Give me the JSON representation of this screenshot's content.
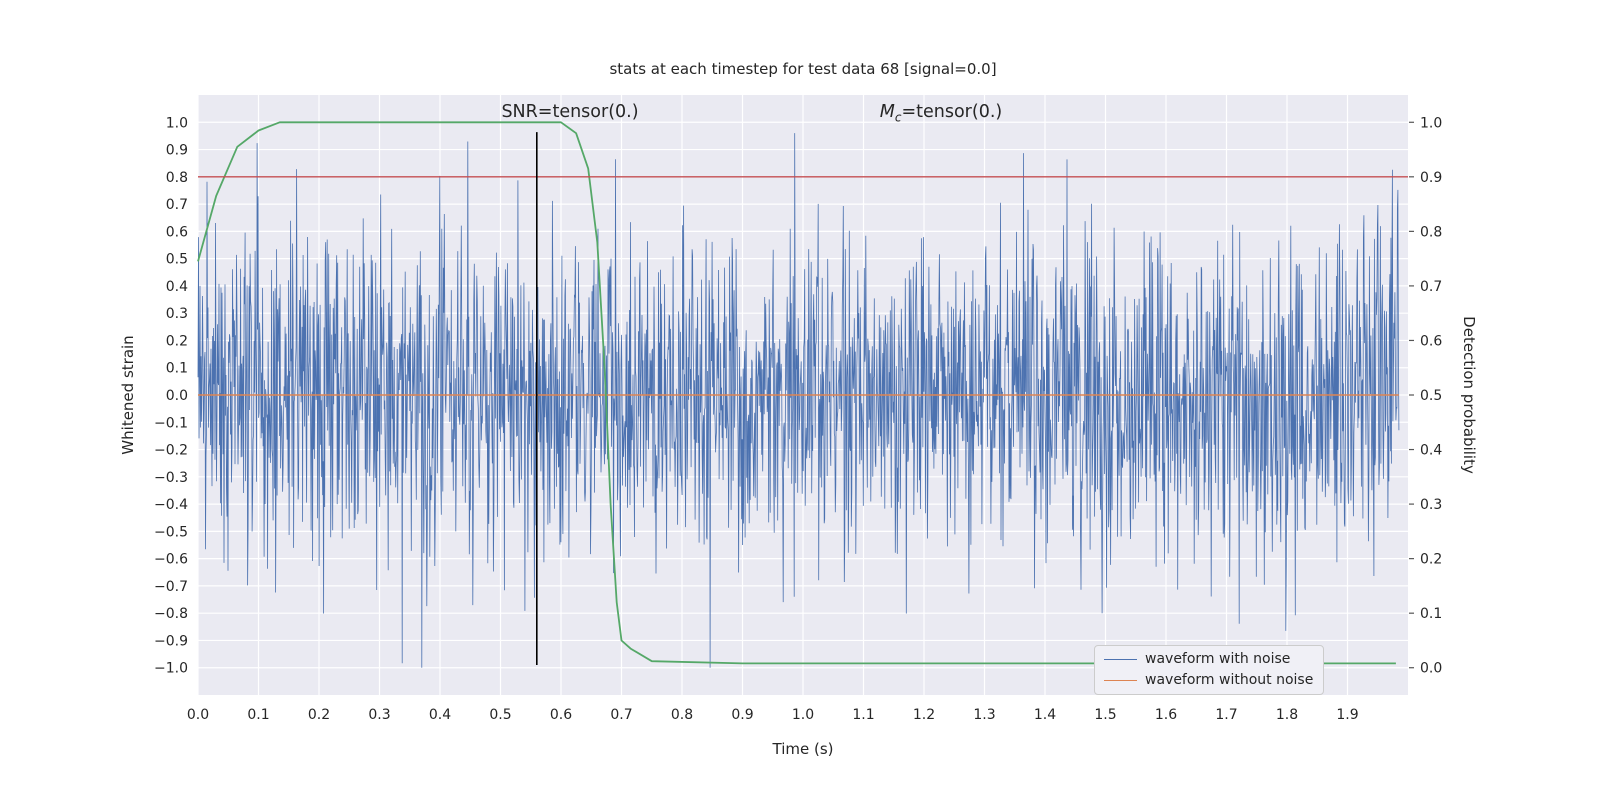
{
  "figure": {
    "annotations": {
      "snr": "SNR=tensor(0.)",
      "mc_prefix": "M",
      "mc_sub": "c",
      "mc_suffix": "=tensor(0.)"
    }
  },
  "chart_data": {
    "type": "line",
    "title": "stats at each timestep for test data 68 [signal=0.0]",
    "xlabel": "Time (s)",
    "ylabel_left": "Whitened strain",
    "ylabel_right": "Detection probability",
    "xlim": [
      0.0,
      2.0
    ],
    "ylim_left": [
      -1.1,
      1.1
    ],
    "ylim_right": [
      -0.05,
      1.05
    ],
    "x_ticks": [
      0.0,
      0.1,
      0.2,
      0.3,
      0.4,
      0.5,
      0.6,
      0.7,
      0.8,
      0.9,
      1.0,
      1.1,
      1.2,
      1.3,
      1.4,
      1.5,
      1.6,
      1.7,
      1.8,
      1.9
    ],
    "y_ticks_left": [
      1.0,
      0.9,
      0.8,
      0.7,
      0.6,
      0.5,
      0.4,
      0.3,
      0.2,
      0.1,
      0.0,
      -0.1,
      -0.2,
      -0.3,
      -0.4,
      -0.5,
      -0.6,
      -0.7,
      -0.8,
      -0.9,
      -1.0
    ],
    "y_ticks_right": [
      1.0,
      0.9,
      0.8,
      0.7,
      0.6,
      0.5,
      0.4,
      0.3,
      0.2,
      0.1,
      0.0
    ],
    "grid": true,
    "background_color": "#eaeaf2",
    "grid_color": "#ffffff",
    "text_color": "#262626",
    "series": [
      {
        "name": "waveform with noise",
        "kind": "noise",
        "axis": "left",
        "color": "#4c72b0",
        "seed": 1968,
        "std": 0.29,
        "n": 2400,
        "x_start": 0.0,
        "x_end": 1.985,
        "clip": 1.0,
        "width": 0.8
      },
      {
        "name": "waveform without noise",
        "kind": "hline-data",
        "axis": "left",
        "color": "#dd8452",
        "y": 0.0,
        "x_start": 0.0,
        "x_end": 1.985,
        "width": 1.6
      },
      {
        "name": "detection probability",
        "kind": "line",
        "axis": "right",
        "color": "#55a868",
        "width": 1.8,
        "points": [
          [
            0.0,
            0.745
          ],
          [
            0.03,
            0.865
          ],
          [
            0.065,
            0.955
          ],
          [
            0.1,
            0.985
          ],
          [
            0.135,
            1.0
          ],
          [
            0.6,
            1.0
          ],
          [
            0.625,
            0.98
          ],
          [
            0.645,
            0.915
          ],
          [
            0.66,
            0.78
          ],
          [
            0.672,
            0.55
          ],
          [
            0.682,
            0.3
          ],
          [
            0.692,
            0.12
          ],
          [
            0.7,
            0.05
          ],
          [
            0.715,
            0.035
          ],
          [
            0.75,
            0.012
          ],
          [
            0.9,
            0.008
          ],
          [
            1.98,
            0.008
          ]
        ]
      },
      {
        "name": "detection threshold",
        "kind": "hline-full",
        "axis": "right",
        "color": "#c44e52",
        "y": 0.9,
        "width": 1.4
      },
      {
        "name": "event time marker",
        "kind": "vline",
        "axis": "right",
        "color": "#000000",
        "x": 0.56,
        "y_min": 0.005,
        "y_max": 0.982,
        "width": 1.6
      }
    ],
    "legend": {
      "position": "lower right",
      "entries": [
        {
          "label": "waveform with noise",
          "color": "#4c72b0"
        },
        {
          "label": "waveform without noise",
          "color": "#dd8452"
        }
      ]
    },
    "annotations": [
      {
        "text": "SNR=tensor(0.)",
        "x": 0.615,
        "y": 0.975
      },
      {
        "text": "Mc=tensor(0.)",
        "x": 1.228,
        "y": 0.975
      }
    ]
  }
}
